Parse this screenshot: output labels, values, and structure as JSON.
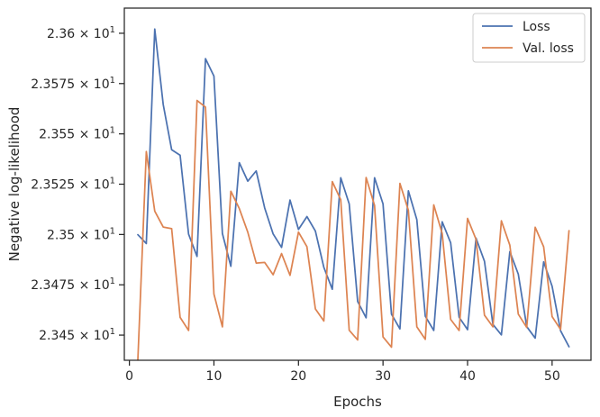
{
  "chart_data": {
    "type": "line",
    "title": "",
    "xlabel": "Epochs",
    "ylabel": "Negative log-likelihood",
    "xlim": [
      -0.6,
      54.6
    ],
    "ylim": [
      23.4375,
      23.6125
    ],
    "x_ticks": [
      0,
      10,
      20,
      30,
      40,
      50
    ],
    "x_tick_labels": [
      "0",
      "10",
      "20",
      "30",
      "40",
      "50"
    ],
    "y_ticks": [
      23.45,
      23.475,
      23.5,
      23.525,
      23.55,
      23.575,
      23.6
    ],
    "y_tick_mantissas": [
      "2.345",
      "2.3475",
      "2.35",
      "2.3525",
      "2.355",
      "2.3575",
      "2.36"
    ],
    "y_tick_times": "×",
    "y_tick_base": "10",
    "y_tick_exponent": "1",
    "grid": false,
    "legend_position": "upper right",
    "x": [
      1,
      2,
      3,
      4,
      5,
      6,
      7,
      8,
      9,
      10,
      11,
      12,
      13,
      14,
      15,
      16,
      17,
      18,
      19,
      20,
      21,
      22,
      23,
      24,
      25,
      26,
      27,
      28,
      29,
      30,
      31,
      32,
      33,
      34,
      35,
      36,
      37,
      38,
      39,
      40,
      41,
      42,
      43,
      44,
      45,
      46,
      47,
      48,
      49,
      50,
      51,
      52
    ],
    "series": [
      {
        "name": "Loss",
        "color": "#4c72b0",
        "values": [
          23.4999,
          23.4955,
          23.6021,
          23.5646,
          23.5421,
          23.5394,
          23.5002,
          23.4891,
          23.5874,
          23.5787,
          23.5005,
          23.4842,
          23.5357,
          23.5265,
          23.5316,
          23.5132,
          23.5003,
          23.4936,
          23.5171,
          23.5025,
          23.5089,
          23.5017,
          23.4837,
          23.4728,
          23.5282,
          23.5152,
          23.4667,
          23.4586,
          23.5282,
          23.5152,
          23.4604,
          23.4531,
          23.5217,
          23.5074,
          23.4594,
          23.4523,
          23.5063,
          23.4959,
          23.4589,
          23.4527,
          23.4982,
          23.4867,
          23.4553,
          23.4501,
          23.4915,
          23.4803,
          23.4542,
          23.4485,
          23.4864,
          23.4743,
          23.4522,
          23.4442
        ]
      },
      {
        "name": "Val. loss",
        "color": "#dd8452",
        "values": [
          23.4376,
          23.5412,
          23.5116,
          23.5037,
          23.5029,
          23.4588,
          23.4523,
          23.5666,
          23.5633,
          23.4704,
          23.4541,
          23.5215,
          23.5129,
          23.5012,
          23.4858,
          23.4861,
          23.48,
          23.4905,
          23.4797,
          23.5012,
          23.4939,
          23.463,
          23.457,
          23.5263,
          23.5173,
          23.4524,
          23.4476,
          23.5283,
          23.5144,
          23.4491,
          23.444,
          23.5254,
          23.512,
          23.4541,
          23.4479,
          23.5147,
          23.5005,
          23.4578,
          23.4523,
          23.508,
          23.4976,
          23.4599,
          23.4541,
          23.5068,
          23.4947,
          23.4604,
          23.4538,
          23.5036,
          23.4939,
          23.4592,
          23.4528,
          23.5019
        ]
      }
    ]
  }
}
